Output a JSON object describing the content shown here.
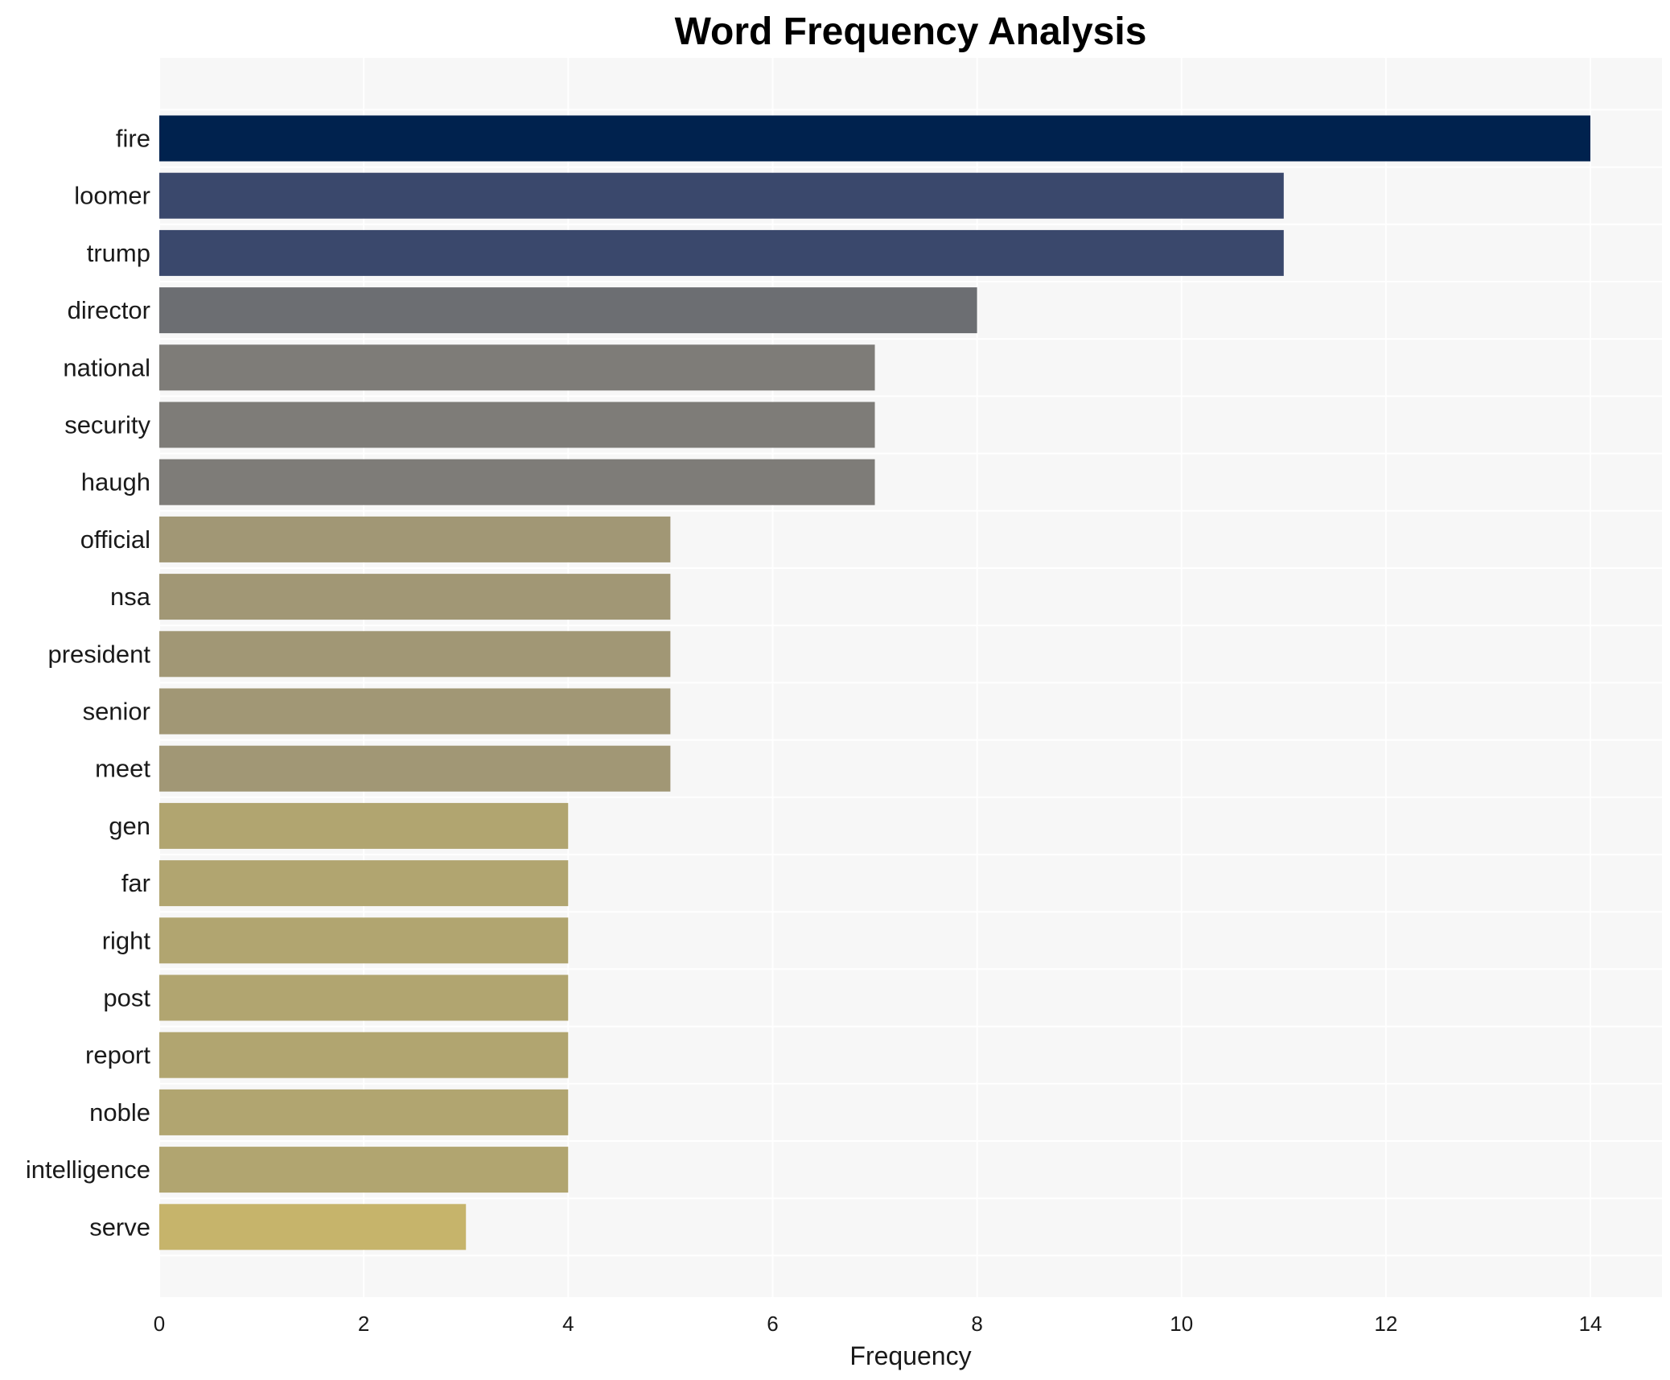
{
  "chart_data": {
    "type": "bar",
    "orientation": "horizontal",
    "title": "Word Frequency Analysis",
    "xlabel": "Frequency",
    "ylabel": "",
    "xlim": [
      0,
      14.7
    ],
    "xticks": [
      0,
      2,
      4,
      6,
      8,
      10,
      12,
      14
    ],
    "grid": true,
    "legend": "none",
    "categories": [
      "fire",
      "loomer",
      "trump",
      "director",
      "national",
      "security",
      "haugh",
      "official",
      "nsa",
      "president",
      "senior",
      "meet",
      "gen",
      "far",
      "right",
      "post",
      "report",
      "noble",
      "intelligence",
      "serve"
    ],
    "values": [
      14,
      11,
      11,
      8,
      7,
      7,
      7,
      5,
      5,
      5,
      5,
      5,
      4,
      4,
      4,
      4,
      4,
      4,
      4,
      3
    ],
    "colors": [
      "#00224e",
      "#3a486c",
      "#3a486c",
      "#6c6e72",
      "#7e7c78",
      "#7e7c78",
      "#7e7c78",
      "#a19775",
      "#a19775",
      "#a19775",
      "#a19775",
      "#a19775",
      "#b1a570",
      "#b1a570",
      "#b1a570",
      "#b1a570",
      "#b1a570",
      "#b1a570",
      "#b1a570",
      "#c6b46b"
    ],
    "background_color": "#f7f7f7",
    "grid_color": "#ffffff"
  }
}
